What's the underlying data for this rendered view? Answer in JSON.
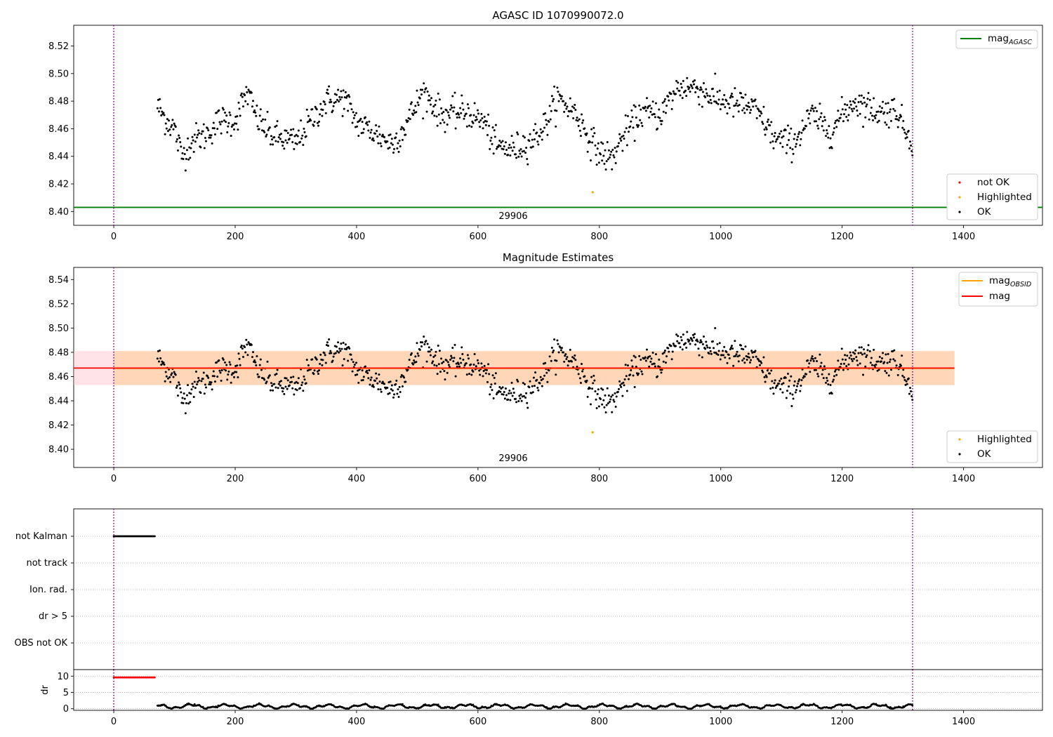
{
  "chart_data": [
    {
      "type": "scatter",
      "title": "AGASC ID 1070990072.0",
      "xlim": [
        -66,
        1530
      ],
      "ylim": [
        8.39,
        8.535
      ],
      "xticks": [
        "0",
        "200",
        "400",
        "600",
        "800",
        "1000",
        "1200",
        "1400"
      ],
      "yticks": [
        "8.40",
        "8.42",
        "8.44",
        "8.46",
        "8.48",
        "8.50",
        "8.52"
      ],
      "vlines": [
        0,
        1316
      ],
      "obsid_label": "29906",
      "obsid_label_x": 658,
      "hline": {
        "name": "mag_AGASC",
        "value": 8.403,
        "color": "#008000"
      },
      "highlighted_point": {
        "x": 789,
        "y": 8.414
      },
      "legend_lines": [
        {
          "label": "mag",
          "sub": "AGASC",
          "color": "#008000"
        }
      ],
      "legend_points": [
        {
          "label": "not OK",
          "color": "#ff0000"
        },
        {
          "label": "Highlighted",
          "color": "#ffa500"
        },
        {
          "label": "OK",
          "color": "#000000"
        }
      ]
    },
    {
      "type": "scatter",
      "title": "Magnitude Estimates",
      "xlim": [
        -66,
        1530
      ],
      "ylim": [
        8.385,
        8.55
      ],
      "xticks": [
        "0",
        "200",
        "400",
        "600",
        "800",
        "1000",
        "1200",
        "1400"
      ],
      "yticks": [
        "8.40",
        "8.42",
        "8.44",
        "8.46",
        "8.48",
        "8.50",
        "8.52",
        "8.54"
      ],
      "vlines": [
        0,
        1316
      ],
      "obsid_label": "29906",
      "obsid_label_x": 658,
      "mag": 8.467,
      "mag_band": [
        8.453,
        8.481
      ],
      "mag_obsid_band": [
        8.453,
        8.481
      ],
      "band_x": [
        -66,
        1385
      ],
      "highlighted_point": {
        "x": 789,
        "y": 8.414
      },
      "legend_lines": [
        {
          "label": "mag",
          "sub": "OBSID",
          "color": "#ffa500"
        },
        {
          "label": "mag",
          "sub": "",
          "color": "#ff0000"
        }
      ],
      "legend_points": [
        {
          "label": "Highlighted",
          "color": "#ffa500"
        },
        {
          "label": "OK",
          "color": "#000000"
        }
      ]
    },
    {
      "type": "scatter",
      "title": "",
      "xlim": [
        -66,
        1530
      ],
      "flag_labels": [
        "not Kalman",
        "not track",
        "Ion. rad.",
        "dr > 5",
        "OBS not OK"
      ],
      "not_kalman_x_range": [
        0,
        68
      ],
      "dr_ylim": [
        -0.5,
        12
      ],
      "dr_yticks": [
        "0",
        "5",
        "10"
      ],
      "dr_ylabel": "dr",
      "xticks": [
        "0",
        "200",
        "400",
        "600",
        "800",
        "1000",
        "1200",
        "1400"
      ],
      "vlines": [
        0,
        1316
      ]
    }
  ]
}
